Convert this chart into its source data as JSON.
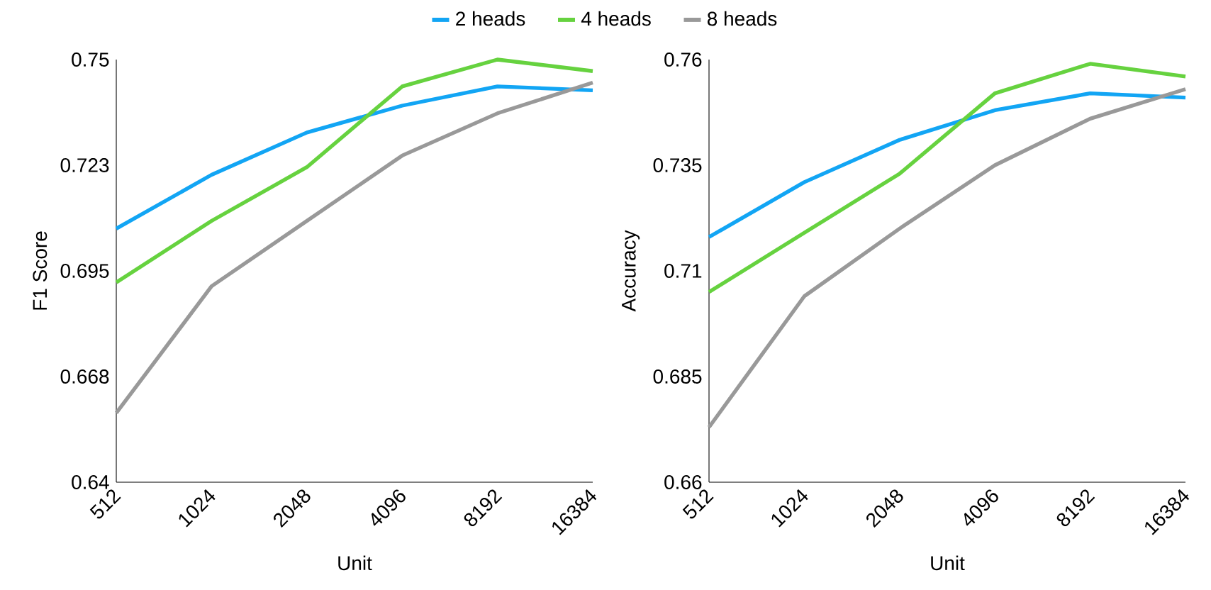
{
  "chart_data": [
    {
      "type": "line",
      "xlabel": "Unit",
      "ylabel": "F1 Score",
      "categories": [
        "512",
        "1024",
        "2048",
        "4096",
        "8192",
        "16384"
      ],
      "ylim": [
        0.64,
        0.75
      ],
      "yticks": [
        0.64,
        {
          "value": 0.6675,
          "label": "0.668"
        },
        0.695,
        {
          "value": 0.7225,
          "label": "0.723"
        },
        0.75
      ],
      "legend": "top",
      "grid": false,
      "marker": "none",
      "line_style": "solid",
      "series": [
        {
          "name": "2 heads",
          "color": "#12a5f4",
          "values": [
            0.706,
            0.72,
            0.731,
            0.738,
            0.743,
            0.742
          ]
        },
        {
          "name": "4 heads",
          "color": "#66d23f",
          "values": [
            0.692,
            0.708,
            0.722,
            0.743,
            0.75,
            0.747
          ]
        },
        {
          "name": "8 heads",
          "color": "#999999",
          "values": [
            0.658,
            0.691,
            0.708,
            0.725,
            0.736,
            0.744
          ]
        }
      ]
    },
    {
      "type": "line",
      "xlabel": "Unit",
      "ylabel": "Accuracy",
      "categories": [
        "512",
        "1024",
        "2048",
        "4096",
        "8192",
        "16384"
      ],
      "ylim": [
        0.66,
        0.76
      ],
      "yticks": [
        0.66,
        0.685,
        0.71,
        0.735,
        0.76
      ],
      "grid": false,
      "marker": "none",
      "line_style": "solid",
      "series": [
        {
          "color": "#12a5f4",
          "values": [
            0.718,
            0.731,
            0.741,
            0.748,
            0.752,
            0.751
          ]
        },
        {
          "color": "#66d23f",
          "values": [
            0.705,
            0.719,
            0.733,
            0.752,
            0.759,
            0.756
          ]
        },
        {
          "color": "#999999",
          "values": [
            0.673,
            0.704,
            0.72,
            0.735,
            0.746,
            0.753
          ]
        }
      ]
    }
  ]
}
